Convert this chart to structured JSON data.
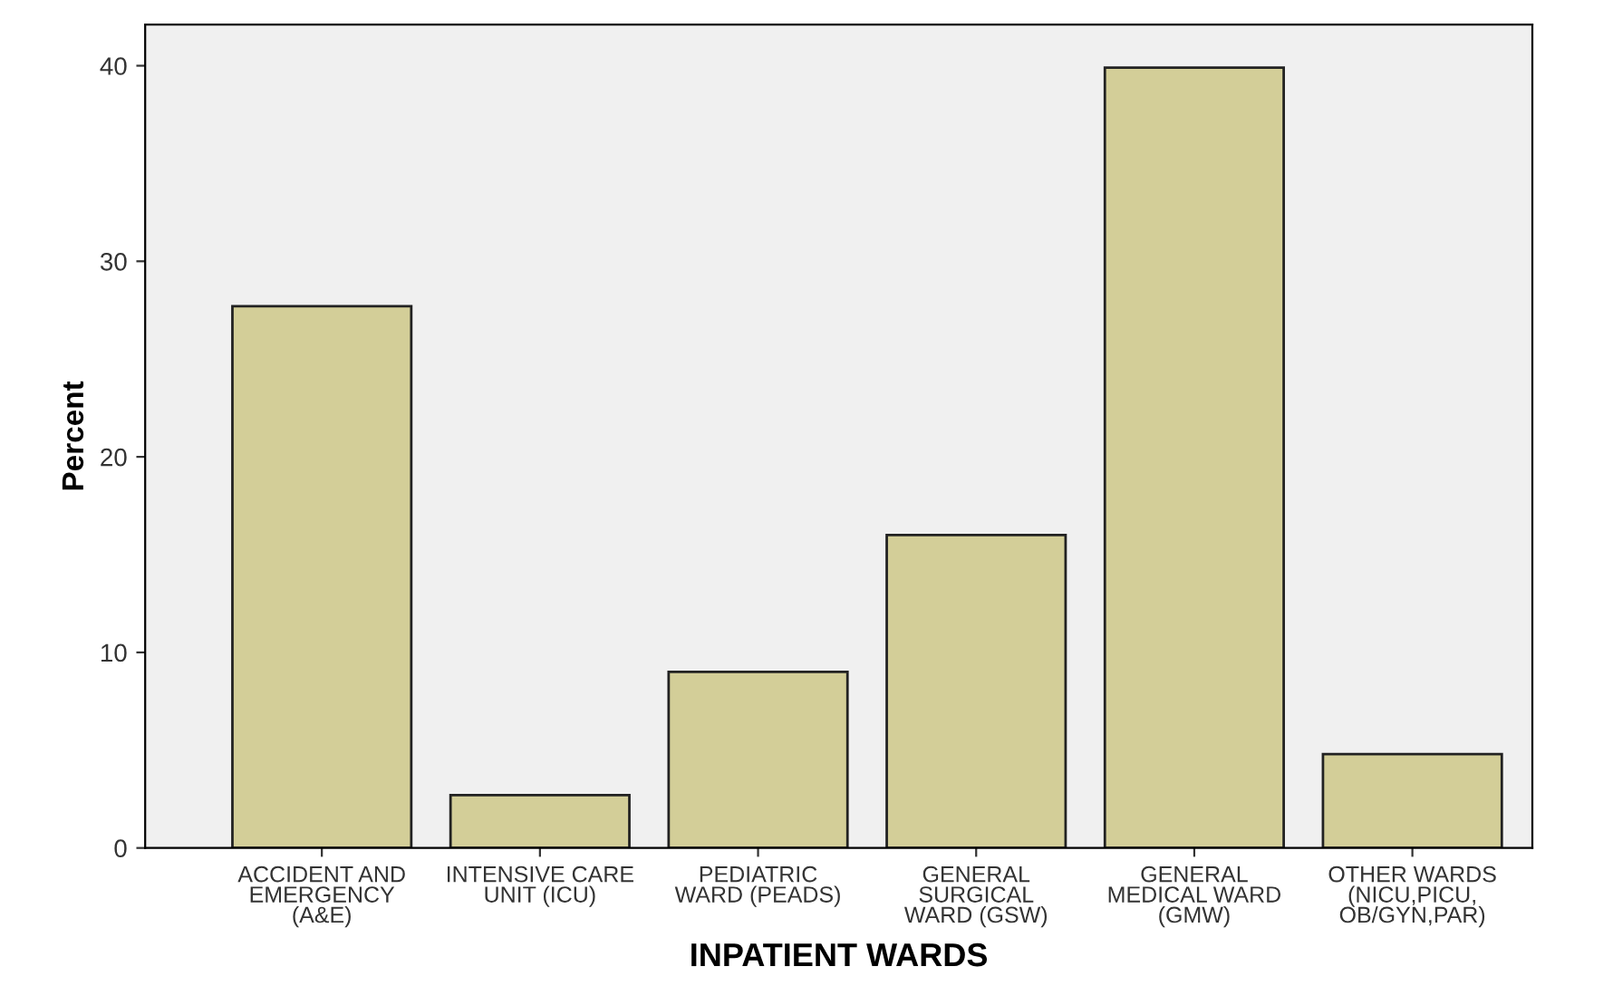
{
  "chart_data": {
    "type": "bar",
    "xlabel": "INPATIENT WARDS",
    "ylabel": "Percent",
    "categories": [
      "ACCIDENT AND\nEMERGENCY\n(A&E)",
      "INTENSIVE CARE\nUNIT (ICU)",
      "PEDIATRIC\nWARD (PEADS)",
      "GENERAL\nSURGICAL\nWARD (GSW)",
      "GENERAL\nMEDICAL WARD\n(GMW)",
      "OTHER WARDS\n(NICU,PICU,\nOB/GYN,PAR)"
    ],
    "values": [
      27.7,
      2.7,
      9.0,
      16.0,
      39.9,
      4.8
    ],
    "color": "#d3ce98",
    "ylim": [
      0,
      42.1
    ],
    "yticks": [
      0,
      10,
      20,
      30,
      40
    ],
    "grid": false
  }
}
